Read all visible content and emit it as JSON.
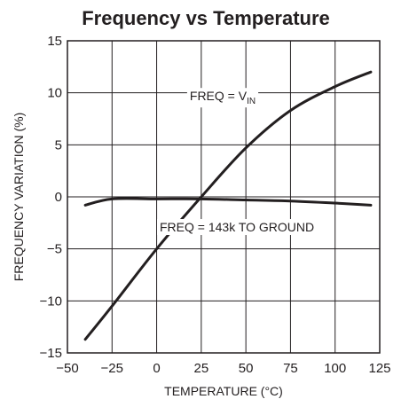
{
  "chart_data": {
    "type": "line",
    "title": "Frequency vs Temperature",
    "xlabel": "TEMPERATURE (°C)",
    "ylabel": "FREQUENCY VARIATION (%)",
    "xlim": [
      -50,
      125
    ],
    "ylim": [
      -15,
      15
    ],
    "xticks": [
      -50,
      -25,
      0,
      25,
      50,
      75,
      100,
      125
    ],
    "yticks": [
      -15,
      -10,
      -5,
      0,
      5,
      10,
      15
    ],
    "xtick_labels": [
      "−50",
      "−25",
      "0",
      "25",
      "50",
      "75",
      "100",
      "125"
    ],
    "ytick_labels": [
      "−15",
      "−10",
      "−5",
      "0",
      "5",
      "10",
      "15"
    ],
    "grid": true,
    "series": [
      {
        "x": [
          -40,
          -25,
          0,
          25,
          50,
          75,
          100,
          120
        ],
        "values": [
          -13.7,
          -10.5,
          -5.0,
          0.0,
          4.7,
          8.3,
          10.6,
          12.0
        ],
        "color": "#231f20"
      },
      {
        "x": [
          -40,
          -25,
          0,
          25,
          50,
          75,
          100,
          120
        ],
        "values": [
          -0.8,
          -0.2,
          -0.2,
          -0.2,
          -0.3,
          -0.4,
          -0.6,
          -0.8
        ],
        "color": "#231f20"
      }
    ],
    "annotations": [
      {
        "text_main": "FREQ = V",
        "text_sub": "IN",
        "x": 37,
        "y": 9.7
      },
      {
        "text": "FREQ = 143k TO GROUND",
        "x": 45,
        "y": -2.9
      }
    ]
  }
}
